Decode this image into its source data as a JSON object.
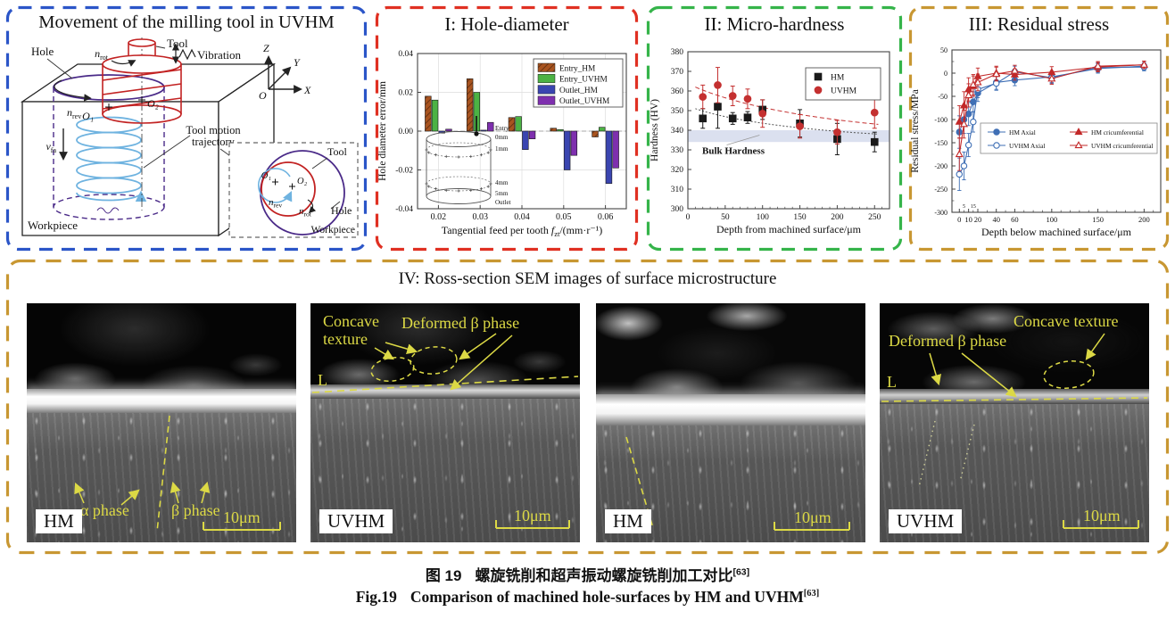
{
  "figure": {
    "caption_zh_label": "图 19",
    "caption_zh": "螺旋铣削和超声振动螺旋铣削加工对比",
    "caption_ref": "[63]",
    "caption_en_label": "Fig.19",
    "caption_en": "Comparison of machined hole-surfaces by HM and UVHM"
  },
  "movement": {
    "title": "Movement of the milling tool in UVHM",
    "border_color": "#2b55c8",
    "labels": {
      "hole": "Hole",
      "tool": "Tool",
      "vibration": "Vibration",
      "workpiece": "Workpiece",
      "trajectory_1": "Tool motion",
      "trajectory_2": "trajectory",
      "axis_z": "Z",
      "axis_y": "Y",
      "axis_x": "X",
      "origin": "O",
      "o1": "O₁",
      "o2": "O₂",
      "n_rot": {
        "m": "n",
        "s": "rot"
      },
      "n_rev": {
        "m": "n",
        "s": "rev"
      },
      "v_fa": {
        "m": "v",
        "s": "fa"
      },
      "inset": {
        "tool": "Tool",
        "hole": "Hole",
        "workpiece": "Workpiece",
        "o1": "O₁",
        "o2": "O₂",
        "n_rev": {
          "m": "n",
          "s": "rev"
        },
        "n_rot": {
          "m": "n",
          "s": "rot"
        }
      }
    }
  },
  "chart_data": [
    {
      "id": "hole-diameter",
      "type": "bar",
      "title": "I: Hole-diameter",
      "border_color": "#e03022",
      "xlabel_parts": {
        "pre": "Tangential feed per tooth ",
        "sym": "f",
        "sub": "zt",
        "post": "/(mm·r⁻¹)"
      },
      "ylabel": "Hole diameter error/mm",
      "ylim": [
        -0.04,
        0.04
      ],
      "yticks": [
        0.04,
        0.02,
        0.0,
        -0.02,
        -0.04
      ],
      "categories": [
        "0.02",
        "0.03",
        "0.04",
        "0.05",
        "0.06"
      ],
      "grid": true,
      "legend_position": "top-right",
      "series": [
        {
          "name": "Entry_HM",
          "color": "#a85420",
          "hatch": true,
          "values": [
            0.018,
            0.027,
            0.007,
            0.0015,
            -0.003
          ]
        },
        {
          "name": "Entry_UVHM",
          "color": "#4cb244",
          "hatch": false,
          "values": [
            0.016,
            0.02,
            0.0075,
            0.0008,
            0.002
          ]
        },
        {
          "name": "Outlet_HM",
          "color": "#3a45b0",
          "hatch": false,
          "values": [
            -0.001,
            0.0005,
            -0.0095,
            -0.02,
            -0.027
          ]
        },
        {
          "name": "Outlet_UVHM",
          "color": "#7e2fae",
          "hatch": false,
          "values": [
            0.001,
            0.0045,
            -0.004,
            -0.0125,
            -0.019
          ]
        }
      ],
      "inset_labels": [
        "Entry",
        "0mm",
        "1mm",
        "4mm",
        "5mm",
        "Outlet"
      ]
    },
    {
      "id": "micro-hardness",
      "type": "scatter",
      "title": "II: Micro-hardness",
      "border_color": "#35b44a",
      "xlabel": "Depth from machined surface/μm",
      "ylabel": "Hardness (HV)",
      "xlim": [
        0,
        270
      ],
      "ylim": [
        300,
        380
      ],
      "xticks": [
        0,
        50,
        100,
        150,
        200,
        250
      ],
      "yticks": [
        300,
        310,
        320,
        330,
        340,
        350,
        360,
        370,
        380
      ],
      "grid": false,
      "legend_position": "top-right",
      "band": {
        "low": 334,
        "high": 340,
        "label": "Bulk Hardness",
        "color": "#a9b6d8"
      },
      "series": [
        {
          "name": "HM",
          "color": "#1a1a1a",
          "marker": "square",
          "x": [
            20,
            40,
            60,
            80,
            100,
            150,
            200,
            250
          ],
          "y": [
            346,
            352,
            346,
            346.5,
            350.5,
            343.5,
            335.5,
            334
          ],
          "err": [
            5,
            11,
            3,
            3,
            5,
            7,
            8,
            5
          ]
        },
        {
          "name": "UVHM",
          "color": "#c43030",
          "marker": "circle",
          "x": [
            20,
            40,
            60,
            80,
            100,
            150,
            200,
            250
          ],
          "y": [
            357,
            363,
            357.5,
            356,
            348.5,
            342,
            339,
            349
          ],
          "err": [
            6,
            9,
            5,
            5,
            7,
            6,
            6,
            8
          ]
        }
      ],
      "trend": [
        {
          "color": "#555555",
          "dash": "2 2",
          "pts": [
            [
              10,
              351
            ],
            [
              80,
              342
            ],
            [
              255,
              338
            ]
          ]
        },
        {
          "color": "#c43030",
          "dash": "5 3",
          "pts": [
            [
              10,
              362
            ],
            [
              90,
              349
            ],
            [
              255,
              343
            ]
          ]
        }
      ]
    },
    {
      "id": "residual-stress",
      "type": "line",
      "title": "III: Residual stress",
      "border_color": "#c89732",
      "xlabel": "Depth below machined surface/μm",
      "ylabel": "Residual stress/MPa",
      "xlim": [
        -8,
        218
      ],
      "ylim": [
        -300,
        50
      ],
      "xticks": [
        0,
        10,
        20,
        40,
        60,
        100,
        150,
        200
      ],
      "minor_xticks": [
        5,
        15
      ],
      "yticks": [
        50,
        0,
        -50,
        -100,
        -150,
        -200,
        -250,
        -300
      ],
      "grid": false,
      "legend_position": "middle",
      "x": [
        0,
        5,
        10,
        15,
        20,
        40,
        60,
        100,
        150,
        200
      ],
      "err": [
        35,
        30,
        25,
        22,
        18,
        15,
        12,
        12,
        10,
        8
      ],
      "series": [
        {
          "name": "HM  Axial",
          "color": "#3f6fb5",
          "marker": "circle",
          "fill": true,
          "y": [
            -127,
            -100,
            -88,
            -62,
            -43,
            -20,
            -15,
            -8,
            10,
            15
          ]
        },
        {
          "name": "UVHM  Axial",
          "color": "#3f6fb5",
          "marker": "circle",
          "fill": false,
          "y": [
            -218,
            -200,
            -155,
            -105,
            -35,
            -22,
            3,
            -10,
            12,
            13
          ]
        },
        {
          "name": "HM cricumferential",
          "color": "#c22828",
          "marker": "triangle",
          "fill": true,
          "y": [
            -105,
            -70,
            -35,
            -28,
            -7,
            0,
            -3,
            2,
            13,
            18
          ]
        },
        {
          "name": "UVHM cricumferential",
          "color": "#c22828",
          "marker": "triangle",
          "fill": false,
          "y": [
            -175,
            -110,
            -48,
            -25,
            -20,
            -2,
            5,
            -12,
            15,
            18
          ]
        }
      ]
    }
  ],
  "sem_panel": {
    "title": "IV: Ross-section SEM images of surface microstructure",
    "border_color": "#c89732",
    "annotation_color": "#dcd945",
    "images": [
      {
        "tag": "HM",
        "scale": "10μm",
        "alpha": "α phase",
        "beta": "β phase"
      },
      {
        "tag": "UVHM",
        "scale": "10μm",
        "concave_1": "Concave",
        "concave_2": "texture",
        "deformed": "Deformed β phase",
        "line_label": "L"
      },
      {
        "tag": "HM",
        "scale": "10μm"
      },
      {
        "tag": "UVHM",
        "scale": "10μm",
        "deformed": "Deformed β phase",
        "concave": "Concave texture",
        "line_label": "L"
      }
    ]
  }
}
